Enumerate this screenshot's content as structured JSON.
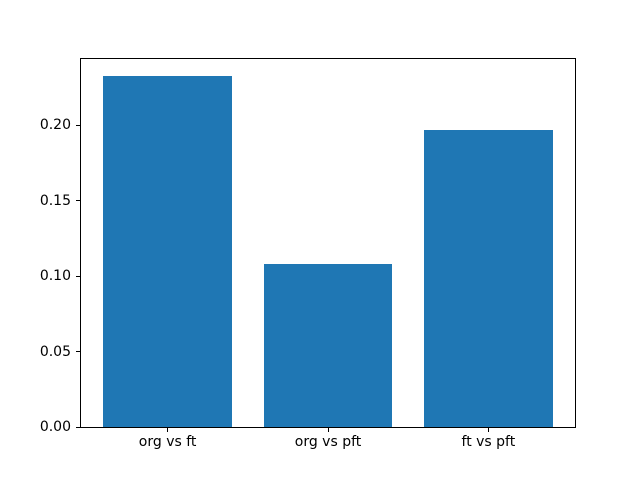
{
  "figure": {
    "background": "#ffffff"
  },
  "chart_data": {
    "type": "bar",
    "categories": [
      "org vs ft",
      "org vs pft",
      "ft vs pft"
    ],
    "values": [
      0.233,
      0.108,
      0.197
    ],
    "title": "",
    "xlabel": "",
    "ylabel": "",
    "ylim": [
      0,
      0.244
    ],
    "xlim": [
      -0.54,
      2.54
    ],
    "bar_width": 0.8,
    "yticks": [
      0.0,
      0.05,
      0.1,
      0.15,
      0.2
    ],
    "ytick_labels": [
      "0.00",
      "0.05",
      "0.10",
      "0.15",
      "0.20"
    ],
    "bar_color": "#1f77b4",
    "axis_color": "#000000",
    "grid": false,
    "legend": false
  }
}
